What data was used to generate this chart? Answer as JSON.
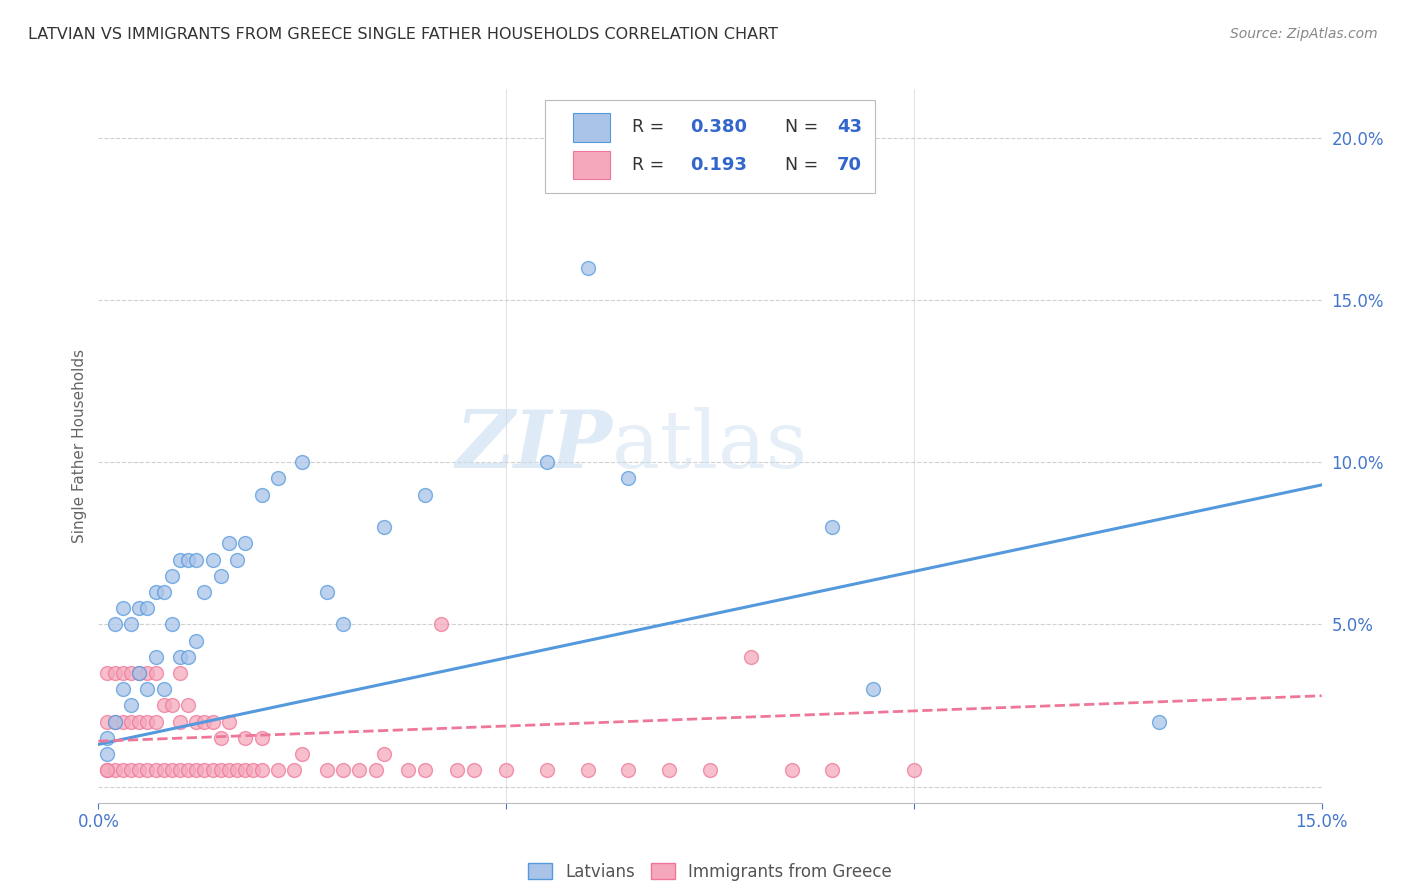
{
  "title": "LATVIAN VS IMMIGRANTS FROM GREECE SINGLE FATHER HOUSEHOLDS CORRELATION CHART",
  "source": "Source: ZipAtlas.com",
  "ylabel": "Single Father Households",
  "latvian_color": "#aac4e8",
  "greek_color": "#f5a8bc",
  "latvian_line_color": "#5599dd",
  "greek_line_color": "#ee7799",
  "background_color": "#ffffff",
  "grid_color": "#cccccc",
  "legend_R1": "0.380",
  "legend_N1": "43",
  "legend_R2": "0.193",
  "legend_N2": "70",
  "xlim": [
    0.0,
    0.15
  ],
  "ylim": [
    -0.005,
    0.215
  ],
  "latvian_x": [
    0.001,
    0.002,
    0.002,
    0.003,
    0.003,
    0.004,
    0.004,
    0.005,
    0.005,
    0.006,
    0.006,
    0.007,
    0.007,
    0.008,
    0.008,
    0.009,
    0.009,
    0.01,
    0.01,
    0.011,
    0.011,
    0.012,
    0.012,
    0.013,
    0.014,
    0.015,
    0.016,
    0.017,
    0.018,
    0.02,
    0.022,
    0.025,
    0.028,
    0.03,
    0.035,
    0.04,
    0.055,
    0.06,
    0.065,
    0.09,
    0.095,
    0.13,
    0.001
  ],
  "latvian_y": [
    0.015,
    0.02,
    0.05,
    0.03,
    0.055,
    0.025,
    0.05,
    0.035,
    0.055,
    0.03,
    0.055,
    0.04,
    0.06,
    0.03,
    0.06,
    0.05,
    0.065,
    0.04,
    0.07,
    0.04,
    0.07,
    0.045,
    0.07,
    0.06,
    0.07,
    0.065,
    0.075,
    0.07,
    0.075,
    0.09,
    0.095,
    0.1,
    0.06,
    0.05,
    0.08,
    0.09,
    0.1,
    0.16,
    0.095,
    0.08,
    0.03,
    0.02,
    0.01
  ],
  "greek_x": [
    0.001,
    0.001,
    0.001,
    0.002,
    0.002,
    0.002,
    0.003,
    0.003,
    0.003,
    0.004,
    0.004,
    0.004,
    0.005,
    0.005,
    0.005,
    0.006,
    0.006,
    0.006,
    0.007,
    0.007,
    0.007,
    0.008,
    0.008,
    0.009,
    0.009,
    0.01,
    0.01,
    0.01,
    0.011,
    0.011,
    0.012,
    0.012,
    0.013,
    0.013,
    0.014,
    0.014,
    0.015,
    0.015,
    0.016,
    0.016,
    0.017,
    0.018,
    0.018,
    0.019,
    0.02,
    0.02,
    0.022,
    0.024,
    0.025,
    0.028,
    0.03,
    0.032,
    0.034,
    0.035,
    0.038,
    0.04,
    0.042,
    0.044,
    0.046,
    0.05,
    0.055,
    0.06,
    0.065,
    0.07,
    0.075,
    0.08,
    0.085,
    0.09,
    0.1,
    0.001
  ],
  "greek_y": [
    0.005,
    0.02,
    0.035,
    0.005,
    0.02,
    0.035,
    0.005,
    0.02,
    0.035,
    0.005,
    0.02,
    0.035,
    0.005,
    0.02,
    0.035,
    0.005,
    0.02,
    0.035,
    0.005,
    0.02,
    0.035,
    0.005,
    0.025,
    0.005,
    0.025,
    0.005,
    0.02,
    0.035,
    0.005,
    0.025,
    0.005,
    0.02,
    0.005,
    0.02,
    0.005,
    0.02,
    0.005,
    0.015,
    0.005,
    0.02,
    0.005,
    0.005,
    0.015,
    0.005,
    0.005,
    0.015,
    0.005,
    0.005,
    0.01,
    0.005,
    0.005,
    0.005,
    0.005,
    0.01,
    0.005,
    0.005,
    0.05,
    0.005,
    0.005,
    0.005,
    0.005,
    0.005,
    0.005,
    0.005,
    0.005,
    0.04,
    0.005,
    0.005,
    0.005,
    0.005
  ]
}
